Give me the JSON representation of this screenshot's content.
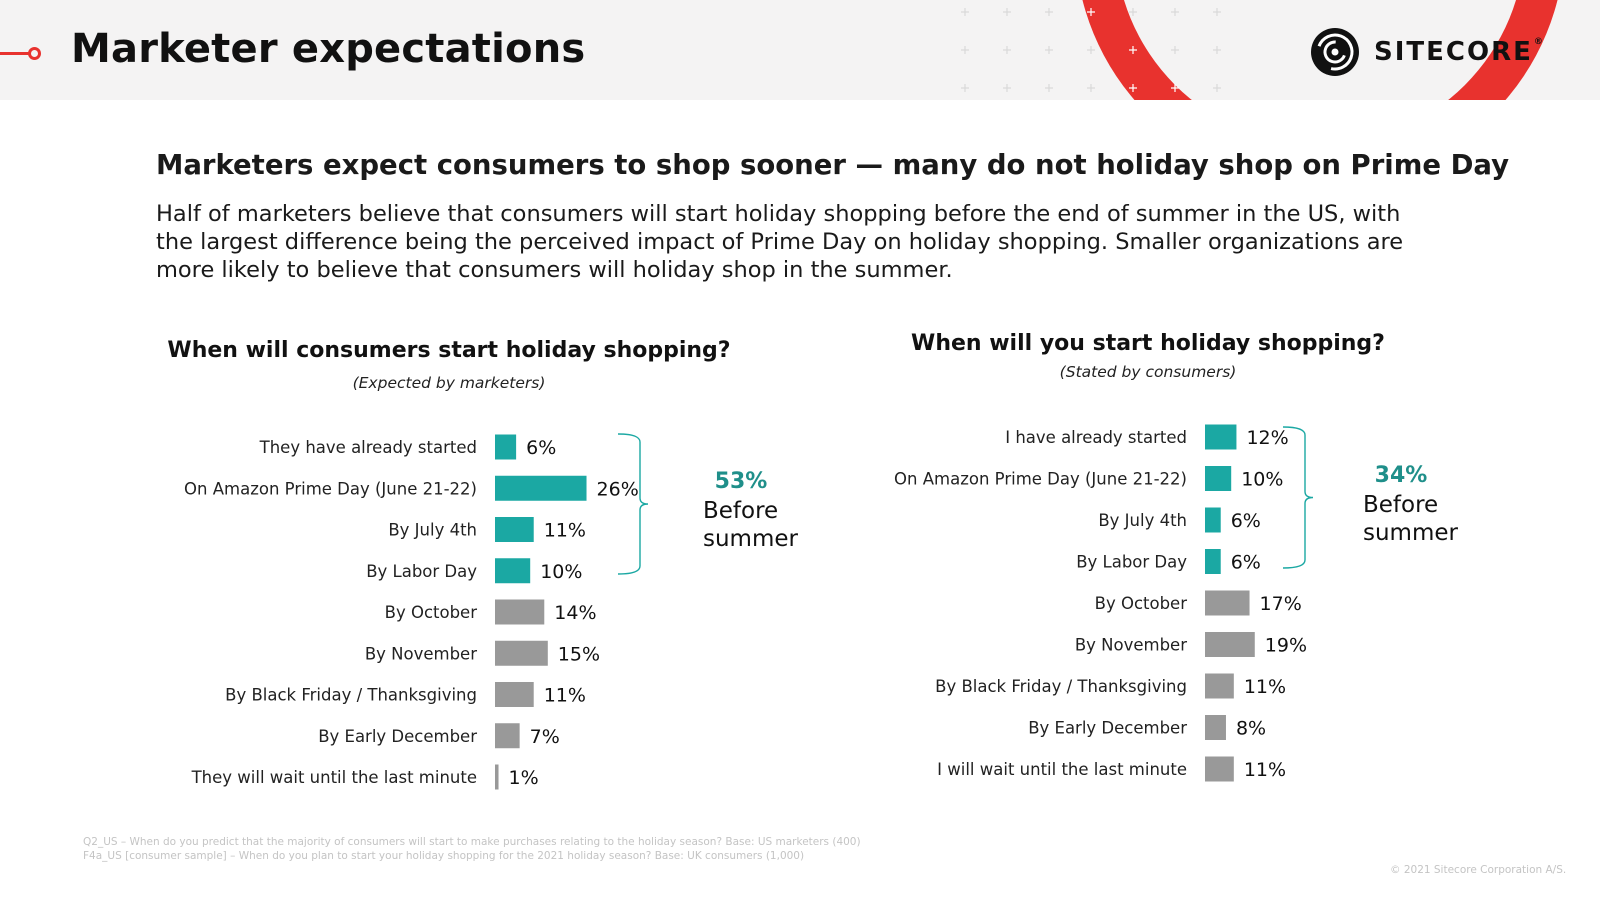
{
  "header": {
    "title": "Marketer expectations",
    "logo_text": "SITECORE",
    "logo_reg": "®",
    "accent_color": "#e8322e"
  },
  "headline": "Marketers expect consumers to shop sooner — many do not holiday shop on Prime Day",
  "body_text": "Half of marketers believe that consumers will start holiday shopping before the end of summer in the US, with the largest difference being the perceived impact of Prime Day on holiday shopping. Smaller organizations are more likely to believe that consumers will holiday shop in the summer.",
  "colors": {
    "highlight": "#1ba8a3",
    "other": "#999999",
    "bracket": "#1ba8a3",
    "pct_text": "#1f8f8a"
  },
  "chart_data": [
    {
      "type": "bar",
      "orientation": "horizontal",
      "title": "When will consumers start holiday shopping?",
      "subtitle": "(Expected by marketers)",
      "categories": [
        "They have already started",
        "On Amazon Prime Day (June 21-22)",
        "By July 4th",
        "By Labor Day",
        "By October",
        "By November",
        "By Black Friday / Thanksgiving",
        "By Early December",
        "They will wait until the last minute"
      ],
      "values": [
        6,
        26,
        11,
        10,
        14,
        15,
        11,
        7,
        1
      ],
      "value_labels": [
        "6%",
        "26%",
        "11%",
        "10%",
        "14%",
        "15%",
        "11%",
        "7%",
        "1%"
      ],
      "highlighted_count": 4,
      "bracket": {
        "percent": "53%",
        "label_line1": "Before",
        "label_line2": "summer"
      }
    },
    {
      "type": "bar",
      "orientation": "horizontal",
      "title": "When will you start holiday shopping?",
      "subtitle": "(Stated by consumers)",
      "categories": [
        "I have already started",
        "On Amazon Prime Day (June 21-22)",
        "By July 4th",
        "By Labor Day",
        "By October",
        "By November",
        "By Black Friday / Thanksgiving",
        "By Early December",
        "I will wait until the last minute"
      ],
      "values": [
        12,
        10,
        6,
        6,
        17,
        19,
        11,
        8,
        11
      ],
      "value_labels": [
        "12%",
        "10%",
        "6%",
        "6%",
        "17%",
        "19%",
        "11%",
        "8%",
        "11%"
      ],
      "highlighted_count": 4,
      "bracket": {
        "percent": "34%",
        "label_line1": "Before",
        "label_line2": "summer"
      }
    }
  ],
  "footnotes": [
    "Q2_US – When do you predict that the majority of consumers will start to make purchases relating to the holiday season? Base: US marketers (400)",
    "F4a_US [consumer sample] – When do you plan to start your holiday shopping for the 2021 holiday season? Base: UK consumers (1,000)"
  ],
  "copyright": "© 2021 Sitecore Corporation A/S."
}
